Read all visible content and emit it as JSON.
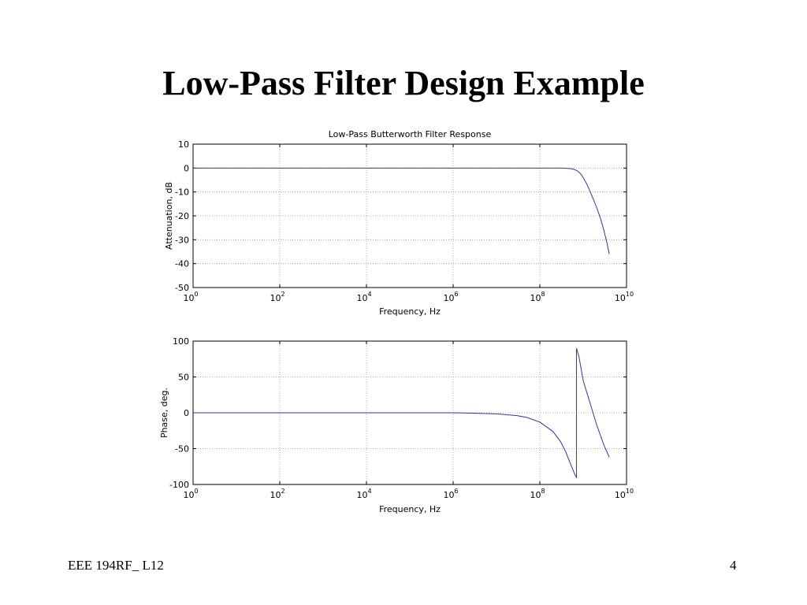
{
  "slide": {
    "title": "Low-Pass Filter Design Example",
    "footer_left": "EEE 194RF_ L12",
    "page_number": "4"
  },
  "colors": {
    "series_line": "#3333aa",
    "grid": "#999999",
    "axes": "#000000"
  },
  "chart_data": [
    {
      "type": "line",
      "title": "Low-Pass Butterworth Filter Response",
      "xlabel": "Frequency, Hz",
      "ylabel": "Attenuation, dB",
      "xscale": "log",
      "xlim": [
        1,
        10000000000
      ],
      "ylim": [
        -50,
        10
      ],
      "xticks": [
        {
          "value": 1,
          "base": "10",
          "exp": "0"
        },
        {
          "value": 100,
          "base": "10",
          "exp": "2"
        },
        {
          "value": 10000,
          "base": "10",
          "exp": "4"
        },
        {
          "value": 1000000,
          "base": "10",
          "exp": "6"
        },
        {
          "value": 100000000,
          "base": "10",
          "exp": "8"
        },
        {
          "value": 10000000000,
          "base": "10",
          "exp": "10"
        }
      ],
      "yticks": [
        {
          "value": 10,
          "label": "10"
        },
        {
          "value": 0,
          "label": "0"
        },
        {
          "value": -10,
          "label": "-10"
        },
        {
          "value": -20,
          "label": "-20"
        },
        {
          "value": -30,
          "label": "-30"
        },
        {
          "value": -40,
          "label": "-40"
        },
        {
          "value": -50,
          "label": "-50"
        }
      ],
      "grid": true,
      "series": [
        {
          "x": [
            1,
            10,
            100,
            1000,
            10000,
            100000,
            1000000,
            10000000,
            100000000,
            300000000,
            400000000,
            500000000,
            600000000,
            700000000,
            800000000,
            900000000,
            1000000000,
            1200000000,
            1500000000,
            2000000000,
            2500000000,
            3000000000,
            3500000000,
            4000000000
          ],
          "y": [
            0,
            0,
            0,
            0,
            0,
            0,
            0,
            0,
            0,
            0,
            -0.1,
            -0.2,
            -0.5,
            -1,
            -1.7,
            -2.7,
            -4,
            -6.5,
            -10.5,
            -16,
            -21,
            -26,
            -31,
            -36
          ]
        }
      ]
    },
    {
      "type": "line",
      "title": "",
      "xlabel": "Frequency, Hz",
      "ylabel": "Phase, deg.",
      "xscale": "log",
      "xlim": [
        1,
        10000000000
      ],
      "ylim": [
        -100,
        100
      ],
      "xticks": [
        {
          "value": 1,
          "base": "10",
          "exp": "0"
        },
        {
          "value": 100,
          "base": "10",
          "exp": "2"
        },
        {
          "value": 10000,
          "base": "10",
          "exp": "4"
        },
        {
          "value": 1000000,
          "base": "10",
          "exp": "6"
        },
        {
          "value": 100000000,
          "base": "10",
          "exp": "8"
        },
        {
          "value": 10000000000,
          "base": "10",
          "exp": "10"
        }
      ],
      "yticks": [
        {
          "value": 100,
          "label": "100"
        },
        {
          "value": 50,
          "label": "50"
        },
        {
          "value": 0,
          "label": "0"
        },
        {
          "value": -50,
          "label": "-50"
        },
        {
          "value": -100,
          "label": "-100"
        }
      ],
      "grid": true,
      "series": [
        {
          "x": [
            1,
            100,
            10000,
            1000000,
            3000000,
            10000000,
            30000000,
            50000000,
            100000000,
            200000000,
            300000000,
            400000000,
            500000000,
            600000000,
            650000000,
            700000000,
            700000000,
            800000000,
            1000000000,
            1500000000,
            2000000000,
            3000000000,
            4000000000
          ],
          "y": [
            0,
            0,
            0,
            0,
            -0.5,
            -1.5,
            -4,
            -6.5,
            -13,
            -26,
            -40,
            -55,
            -70,
            -82,
            -87,
            -90,
            90,
            78,
            45,
            10,
            -15,
            -45,
            -62
          ]
        }
      ]
    }
  ]
}
